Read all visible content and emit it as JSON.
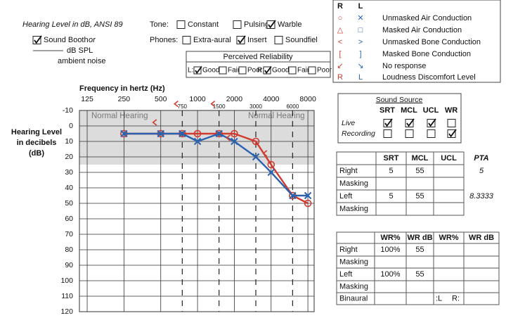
{
  "header": {
    "standard": "Hearing Level in dB, ANSI 89",
    "sound_booth": {
      "label": "Sound Booth",
      "checked": true
    },
    "or": "or",
    "spl": "dB SPL",
    "ambient": "ambient noise"
  },
  "tone": {
    "label": "Tone:",
    "options": [
      {
        "label": "Constant",
        "checked": false
      },
      {
        "label": "Pulsing",
        "checked": false
      },
      {
        "label": "Warble",
        "checked": true
      }
    ]
  },
  "phones": {
    "label": "Phones:",
    "options": [
      {
        "label": "Extra-aural",
        "checked": false
      },
      {
        "label": "Insert",
        "checked": true
      },
      {
        "label": "Soundfiel",
        "checked": false
      }
    ]
  },
  "reliability": {
    "title": "Perceived Reliability",
    "ears": [
      {
        "label": "L:",
        "options": [
          {
            "label": "Good",
            "checked": true
          },
          {
            "label": "Fair",
            "checked": false
          },
          {
            "label": "Poor",
            "checked": false
          }
        ]
      },
      {
        "label": "R:",
        "options": [
          {
            "label": "Good",
            "checked": true
          },
          {
            "label": "Fair",
            "checked": false
          },
          {
            "label": "Poor",
            "checked": false
          }
        ]
      }
    ]
  },
  "legend": {
    "headers": [
      "R",
      "L"
    ],
    "right_color": "#d03a2f",
    "left_color": "#2a62b0",
    "rows": [
      {
        "right": "○",
        "left": "✕",
        "label": "Unmasked Air Conduction"
      },
      {
        "right": "△",
        "left": "□",
        "label": "Masked Air Conduction"
      },
      {
        "right": "<",
        "left": ">",
        "label": "Unmasked Bone Conduction"
      },
      {
        "right": "[",
        "left": "]",
        "label": "Masked Bone Conduction"
      },
      {
        "right": "↙",
        "left": "↘",
        "label": "No response"
      },
      {
        "right": "R",
        "left": "L",
        "label": "Loudness Discomfort Level"
      }
    ]
  },
  "chart_data": {
    "type": "line",
    "title": "Frequency in hertz (Hz)",
    "ylabel": [
      "Hearing Level",
      "in decibels",
      "(dB)"
    ],
    "xlog": true,
    "xlim": [
      108,
      9000
    ],
    "xticks": [
      125,
      250,
      500,
      1000,
      2000,
      4000,
      8000
    ],
    "xticks_minor": [
      750,
      1500,
      3000,
      6000
    ],
    "ylim": [
      -10,
      120
    ],
    "yticks": [
      -10,
      0,
      10,
      20,
      30,
      40,
      50,
      60,
      70,
      80,
      90,
      100,
      110,
      120
    ],
    "y_inverted": true,
    "grid": true,
    "normal_range": [
      -10,
      25
    ],
    "annotations": [
      "Normal Hearing",
      "Normal Hearing"
    ],
    "series": [
      {
        "color": "#d03a2f",
        "marker": "circle",
        "line": true,
        "x": [
          250,
          500,
          750,
          1000,
          1500,
          2000,
          3000,
          4000,
          6000,
          8000
        ],
        "values": [
          5,
          5,
          5,
          5,
          5,
          5,
          10,
          25,
          45,
          50
        ]
      },
      {
        "color": "#2a62b0",
        "marker": "x",
        "line": true,
        "x": [
          250,
          500,
          750,
          1000,
          1500,
          2000,
          3000,
          4000,
          6000,
          8000
        ],
        "values": [
          5,
          5,
          5,
          10,
          5,
          10,
          20,
          30,
          45,
          45
        ]
      },
      {
        "color": "#d03a2f",
        "marker": "bracket-left",
        "line": false,
        "x": [
          500,
          750,
          1500,
          2000,
          4000
        ],
        "values": [
          0,
          -12,
          -12,
          10,
          20
        ]
      }
    ]
  },
  "sound_source": {
    "title": "Sound Source",
    "columns": [
      "SRT",
      "MCL",
      "UCL",
      "WR"
    ],
    "rows": [
      {
        "label": "Live",
        "checked": [
          true,
          true,
          true,
          false
        ]
      },
      {
        "label": "Recording",
        "checked": [
          false,
          false,
          false,
          true
        ]
      }
    ]
  },
  "thresholds": {
    "columns": [
      "SRT",
      "MCL",
      "UCL",
      "PTA"
    ],
    "rows": [
      {
        "label": "Right",
        "cells": [
          5,
          55,
          null,
          5
        ]
      },
      {
        "label": "Masking",
        "cells": [
          null,
          null,
          null,
          null
        ]
      },
      {
        "label": "Left",
        "cells": [
          5,
          55,
          null,
          8.3333
        ]
      },
      {
        "label": "Masking",
        "cells": [
          null,
          null,
          null,
          null
        ]
      }
    ]
  },
  "word_recognition": {
    "columns": [
      "WR%",
      "WR dB",
      "WR%",
      "WR dB"
    ],
    "rows": [
      {
        "label": "Right",
        "cells": [
          "100%",
          55,
          null,
          null
        ]
      },
      {
        "label": "Masking",
        "cells": [
          null,
          null,
          null,
          null
        ]
      },
      {
        "label": "Left",
        "cells": [
          "100%",
          55,
          null,
          null
        ]
      },
      {
        "label": "Masking",
        "cells": [
          null,
          null,
          null,
          null
        ]
      },
      {
        "label": "Binaural",
        "cells": [
          null,
          null,
          null,
          null
        ],
        "notes": [
          ":L",
          "R:"
        ]
      }
    ]
  }
}
